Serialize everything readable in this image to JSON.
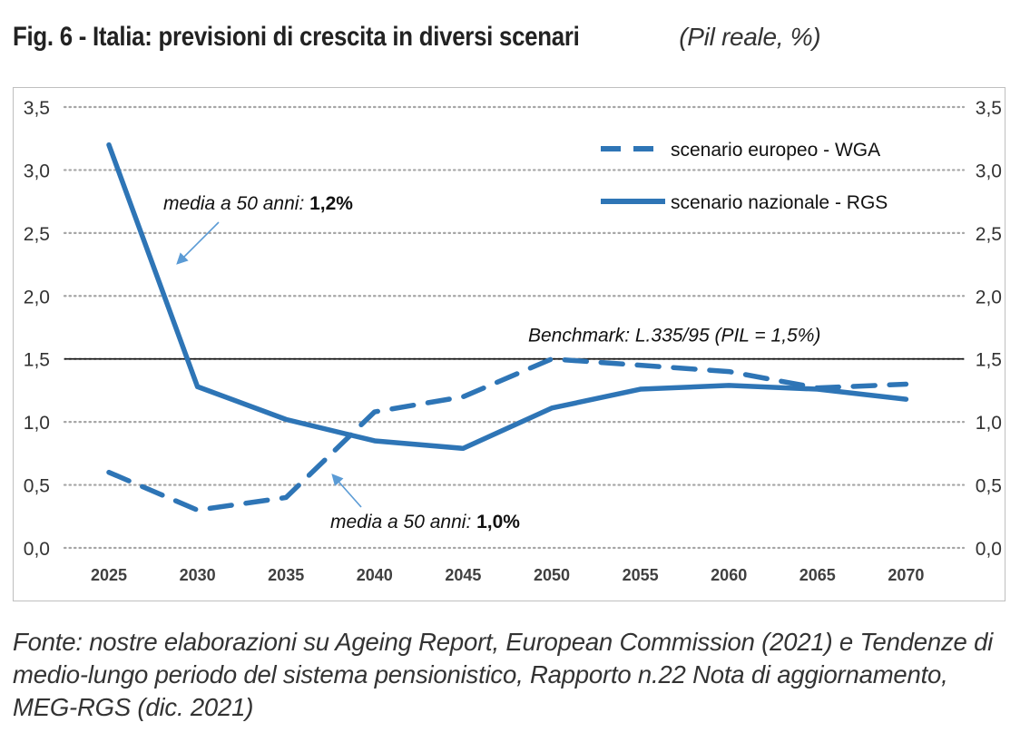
{
  "figure": {
    "title_bold": "Fig. 6 - Italia: previsioni di crescita in diversi scenari",
    "title_italic": "(Pil reale, %)",
    "source": "Fonte: nostre elaborazioni su Ageing Report, European Commission (2021) e Tendenze di medio-lungo periodo del sistema pensionistico, Rapporto n.22 Nota di aggiornamento, MEG-RGS (dic. 2021)"
  },
  "chart_data": {
    "type": "line",
    "x": [
      "2025",
      "2030",
      "2035",
      "2040",
      "2045",
      "2050",
      "2055",
      "2060",
      "2065",
      "2070"
    ],
    "y_ticks": [
      "0,0",
      "0,5",
      "1,0",
      "1,5",
      "2,0",
      "2,5",
      "3,0",
      "3,5"
    ],
    "ylim": [
      0,
      3.5
    ],
    "grid": "horizontal dotted",
    "legend_position": "top-right",
    "series": [
      {
        "name": "scenario europeo - WGA",
        "style": "dashed",
        "color": "#2e75b6",
        "values": [
          0.6,
          0.3,
          0.4,
          1.08,
          1.2,
          1.5,
          1.45,
          1.4,
          1.27,
          1.3
        ]
      },
      {
        "name": "scenario nazionale - RGS",
        "style": "solid",
        "color": "#2e75b6",
        "values": [
          3.2,
          1.28,
          1.02,
          0.85,
          0.79,
          1.11,
          1.26,
          1.29,
          1.26,
          1.18
        ]
      }
    ],
    "benchmark": {
      "value": 1.5,
      "label": "Benchmark:  L.335/95  (PIL = 1,5%)"
    },
    "annotations": [
      {
        "text": "media a 50 anni:",
        "bold": "1,2%",
        "series": "scenario nazionale - RGS"
      },
      {
        "text": "media a 50 anni:",
        "bold": "1,0%",
        "series": "scenario europeo - WGA"
      }
    ]
  }
}
